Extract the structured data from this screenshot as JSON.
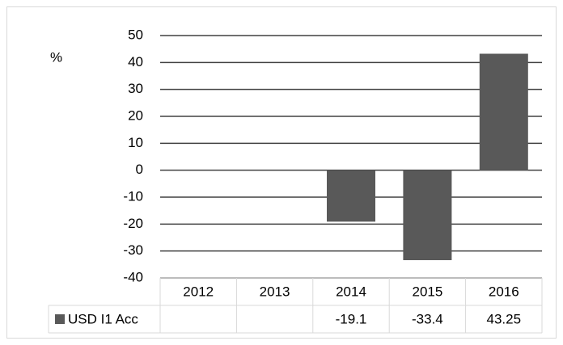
{
  "chart_data": {
    "type": "bar",
    "y_label": "%",
    "categories": [
      "2012",
      "2013",
      "2014",
      "2015",
      "2016"
    ],
    "series": [
      {
        "name": "USD I1 Acc",
        "color": "#595959",
        "values": [
          null,
          null,
          -19.1,
          -33.4,
          43.25
        ]
      }
    ],
    "ylim": [
      -40,
      50
    ],
    "yticks": [
      -40,
      -30,
      -20,
      -10,
      0,
      10,
      20,
      30,
      40,
      50
    ],
    "grid": true
  }
}
